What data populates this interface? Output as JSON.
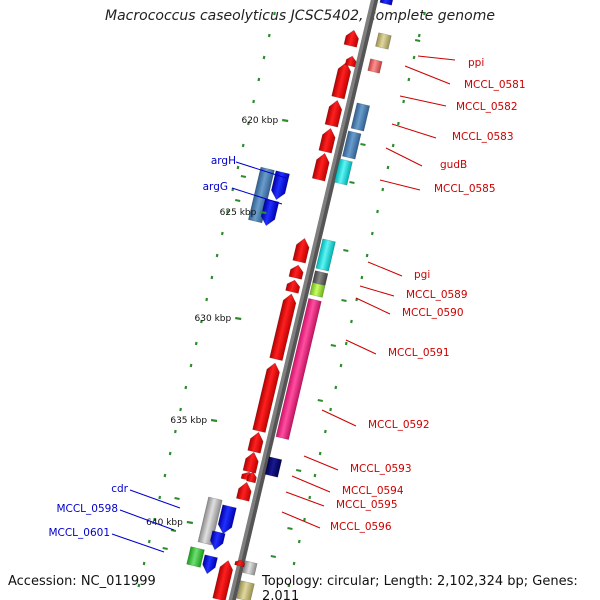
{
  "title": "Macrococcus caseolyticus JCSC5402, complete genome",
  "footer": {
    "accession": "Accession: NC_011999",
    "summary": "Topology: circular; Length: 2,102,324 bp; Genes: 2,011"
  },
  "colors": {
    "backbone": "#7f7f7f",
    "forward_label": "#0000cc",
    "reverse_label": "#cc0000",
    "tick": "#2e8b2e"
  },
  "ticks": [
    "620 kbp",
    "625 kbp",
    "630 kbp",
    "635 kbp",
    "640 kbp"
  ],
  "forward_labels": [
    "argH",
    "argG",
    "cdr",
    "MCCL_0598",
    "MCCL_0601"
  ],
  "reverse_labels": [
    "ppi",
    "MCCL_0581",
    "MCCL_0582",
    "MCCL_0583",
    "gudB",
    "MCCL_0585",
    "pgi",
    "MCCL_0589",
    "MCCL_0590",
    "MCCL_0591",
    "MCCL_0592",
    "MCCL_0593",
    "MCCL_0594",
    "MCCL_0595",
    "MCCL_0596"
  ]
}
